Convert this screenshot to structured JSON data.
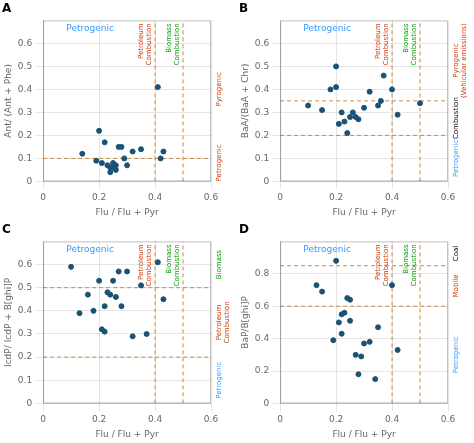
{
  "chart_data": [
    {
      "type": "scatter",
      "title": "A",
      "annotations": [
        {
          "text": "Petrogenic",
          "color": "#3399ff"
        }
      ],
      "xlabel": "Flu / Flu + Pyr",
      "ylabel": "Ant/ (Ant + Phe)",
      "x": [
        0.14,
        0.19,
        0.2,
        0.21,
        0.22,
        0.23,
        0.24,
        0.24,
        0.25,
        0.25,
        0.26,
        0.26,
        0.27,
        0.28,
        0.29,
        0.3,
        0.32,
        0.35,
        0.41,
        0.42,
        0.43
      ],
      "values": [
        0.12,
        0.09,
        0.22,
        0.08,
        0.17,
        0.07,
        0.04,
        0.06,
        0.06,
        0.08,
        0.05,
        0.07,
        0.15,
        0.15,
        0.1,
        0.07,
        0.13,
        0.14,
        0.41,
        0.1,
        0.13
      ],
      "color": "#1a5276",
      "hlines": {
        "values": [
          0.1
        ],
        "color": "#cc8844"
      },
      "vlines": {
        "values": [
          0.4,
          0.5
        ],
        "color": "#cc8844",
        "labels": [
          "Petroleum\nCombustion",
          "Biomass\nCombustion"
        ],
        "label_colors": [
          "#cc3300",
          "#009900"
        ]
      },
      "right_labels": [
        "Pyrogenic",
        "Petrogenic"
      ],
      "right_label_colors": [
        "#cc3300",
        "#cc3300"
      ],
      "xlim": [
        0,
        0.6
      ],
      "xticks": [
        0,
        0.2,
        0.4,
        0.6
      ],
      "ylim": [
        0,
        0.7
      ],
      "yticks": [
        0,
        0.1,
        0.2,
        0.3,
        0.4,
        0.5,
        0.6
      ],
      "grid": true
    },
    {
      "type": "scatter",
      "title": "B",
      "annotations": [
        {
          "text": "Petrogenic",
          "color": "#3399ff"
        }
      ],
      "xlabel": "Flu / Flu + Pyr",
      "ylabel": "BaA/(BaA + Chr)",
      "x": [
        0.1,
        0.15,
        0.18,
        0.2,
        0.2,
        0.21,
        0.22,
        0.23,
        0.24,
        0.25,
        0.26,
        0.27,
        0.28,
        0.3,
        0.32,
        0.35,
        0.36,
        0.37,
        0.4,
        0.42,
        0.5
      ],
      "values": [
        0.33,
        0.31,
        0.4,
        0.5,
        0.41,
        0.25,
        0.3,
        0.26,
        0.21,
        0.28,
        0.3,
        0.28,
        0.27,
        0.32,
        0.39,
        0.33,
        0.35,
        0.46,
        0.4,
        0.29,
        0.34
      ],
      "color": "#1a5276",
      "hlines": {
        "values": [
          0.2,
          0.35
        ],
        "color": "#cc8844"
      },
      "vlines": {
        "values": [
          0.4,
          0.5
        ],
        "color": "#cc8844",
        "labels": [
          "Petroleum\nCombustion",
          "Biomass\nCombustion"
        ],
        "label_colors": [
          "#cc3300",
          "#009900"
        ]
      },
      "right_labels": [
        "Pyrogenic\n(Vehicular emissions)",
        "Combustion",
        "Petrogenic"
      ],
      "right_label_colors": [
        "#cc3300",
        "#000000",
        "#3399ff"
      ],
      "xlim": [
        0,
        0.6
      ],
      "xticks": [
        0,
        0.2,
        0.4,
        0.6
      ],
      "ylim": [
        0,
        0.7
      ],
      "yticks": [
        0,
        0.1,
        0.2,
        0.3,
        0.4,
        0.5,
        0.6
      ],
      "grid": true
    },
    {
      "type": "scatter",
      "title": "C",
      "annotations": [
        {
          "text": "Petrogenic",
          "color": "#3399ff"
        }
      ],
      "xlabel": "Flu / Flu + Pyr",
      "ylabel": "IcdP/ IcdP + B[ghi]P",
      "x": [
        0.1,
        0.13,
        0.16,
        0.18,
        0.2,
        0.21,
        0.22,
        0.22,
        0.23,
        0.24,
        0.25,
        0.26,
        0.27,
        0.28,
        0.3,
        0.32,
        0.35,
        0.37,
        0.41,
        0.43
      ],
      "values": [
        0.59,
        0.39,
        0.47,
        0.4,
        0.53,
        0.32,
        0.42,
        0.31,
        0.48,
        0.47,
        0.53,
        0.46,
        0.57,
        0.42,
        0.57,
        0.29,
        0.51,
        0.3,
        0.61,
        0.45
      ],
      "color": "#1a5276",
      "hlines": {
        "values": [
          0.2,
          0.5
        ],
        "color": "#cc8844"
      },
      "vlines": {
        "values": [
          0.4,
          0.5
        ],
        "color": "#cc8844",
        "labels": [
          "Petroleum\nCombustion",
          "Biomass\nCombustion"
        ],
        "label_colors": [
          "#cc3300",
          "#009900"
        ]
      },
      "right_labels": [
        "Biomass",
        "Petroleum\nCombustion",
        "Petrogenic"
      ],
      "right_label_colors": [
        "#009900",
        "#cc3300",
        "#3399ff"
      ],
      "xlim": [
        0,
        0.6
      ],
      "xticks": [
        0,
        0.2,
        0.4,
        0.6
      ],
      "ylim": [
        0,
        0.7
      ],
      "yticks": [
        0,
        0.1,
        0.2,
        0.3,
        0.4,
        0.5,
        0.6
      ],
      "grid": true
    },
    {
      "type": "scatter",
      "title": "D",
      "annotations": [
        {
          "text": "Petrogenic",
          "color": "#3399ff"
        }
      ],
      "xlabel": "Flu / Flu + Pyr",
      "ylabel": "BaP/B[ghi]P",
      "x": [
        0.13,
        0.15,
        0.19,
        0.2,
        0.21,
        0.22,
        0.22,
        0.23,
        0.24,
        0.25,
        0.25,
        0.27,
        0.28,
        0.29,
        0.3,
        0.32,
        0.34,
        0.35,
        0.4,
        0.42
      ],
      "values": [
        0.73,
        0.69,
        0.39,
        0.88,
        0.5,
        0.43,
        0.55,
        0.56,
        0.65,
        0.64,
        0.51,
        0.3,
        0.18,
        0.29,
        0.37,
        0.38,
        0.15,
        0.47,
        0.73,
        0.33
      ],
      "color": "#1a5276",
      "hlines": {
        "values": [
          0.6,
          0.85
        ],
        "color": "#cc8844"
      },
      "vlines": {
        "values": [
          0.4,
          0.5
        ],
        "color": "#cc8844",
        "labels": [
          "Petroleum\nCombustion",
          "Biomass\nCombustion"
        ],
        "label_colors": [
          "#cc3300",
          "#009900"
        ]
      },
      "right_labels": [
        "Coal",
        "Mobile",
        "Petrogenic"
      ],
      "right_label_colors": [
        "#000000",
        "#cc3300",
        "#3399ff"
      ],
      "xlim": [
        0,
        0.6
      ],
      "xticks": [
        0,
        0.2,
        0.4,
        0.6
      ],
      "ylim": [
        0,
        1.0
      ],
      "yticks": [
        0,
        0.2,
        0.4,
        0.6,
        0.8
      ],
      "grid": true
    }
  ]
}
